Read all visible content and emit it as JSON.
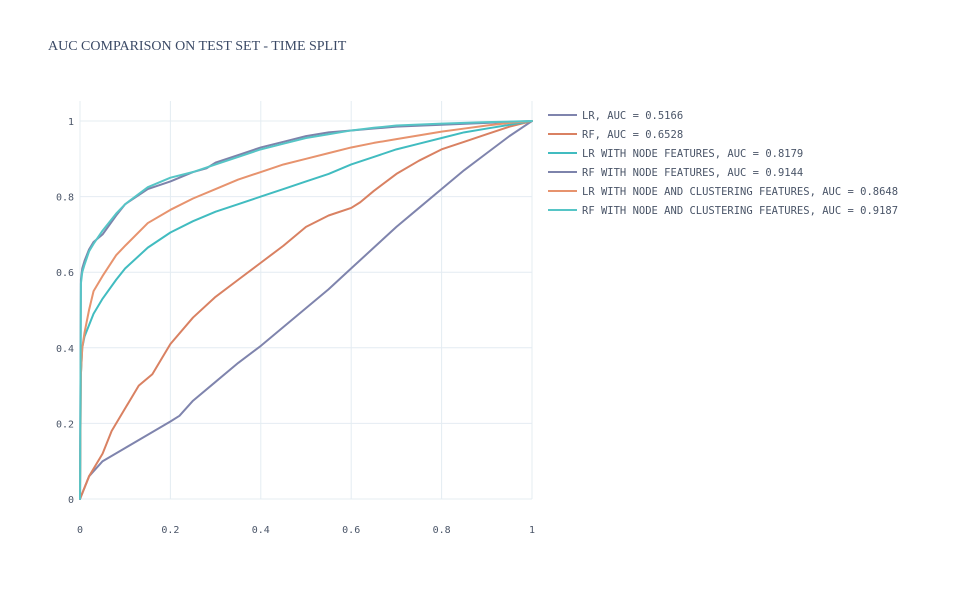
{
  "chart_data": {
    "type": "line",
    "title": "AUC COMPARISON ON TEST SET - TIME SPLIT",
    "xlabel": "",
    "ylabel": "",
    "xlim": [
      0,
      1
    ],
    "ylim": [
      0,
      1
    ],
    "x_ticks": [
      "0",
      "0.2",
      "0.4",
      "0.6",
      "0.8",
      "1"
    ],
    "y_ticks": [
      "0",
      "0.2",
      "0.4",
      "0.6",
      "0.8",
      "1"
    ],
    "grid": true,
    "legend_position": "right",
    "series": [
      {
        "name": "LR, AUC = 0.5166",
        "color": "#7f84ad",
        "x": [
          0,
          0.02,
          0.05,
          0.1,
          0.15,
          0.2,
          0.22,
          0.25,
          0.3,
          0.35,
          0.4,
          0.45,
          0.5,
          0.55,
          0.6,
          0.65,
          0.7,
          0.75,
          0.8,
          0.85,
          0.9,
          0.95,
          1
        ],
        "y": [
          0,
          0.06,
          0.1,
          0.135,
          0.17,
          0.205,
          0.22,
          0.26,
          0.31,
          0.36,
          0.405,
          0.455,
          0.505,
          0.555,
          0.61,
          0.665,
          0.72,
          0.77,
          0.82,
          0.87,
          0.915,
          0.96,
          1
        ]
      },
      {
        "name": "RF, AUC = 0.6528",
        "color": "#d98162",
        "x": [
          0,
          0.02,
          0.05,
          0.07,
          0.1,
          0.13,
          0.16,
          0.18,
          0.2,
          0.25,
          0.3,
          0.35,
          0.4,
          0.45,
          0.5,
          0.55,
          0.6,
          0.62,
          0.65,
          0.7,
          0.75,
          0.8,
          0.85,
          0.9,
          0.95,
          1
        ],
        "y": [
          0,
          0.06,
          0.12,
          0.18,
          0.24,
          0.3,
          0.33,
          0.37,
          0.41,
          0.48,
          0.535,
          0.58,
          0.625,
          0.67,
          0.72,
          0.75,
          0.77,
          0.785,
          0.815,
          0.86,
          0.895,
          0.925,
          0.945,
          0.965,
          0.985,
          1
        ]
      },
      {
        "name": "LR WITH NODE FEATURES, AUC = 0.8179",
        "color": "#41bcc0",
        "x": [
          0,
          0.002,
          0.005,
          0.01,
          0.02,
          0.03,
          0.05,
          0.08,
          0.1,
          0.15,
          0.2,
          0.25,
          0.3,
          0.35,
          0.4,
          0.45,
          0.5,
          0.55,
          0.6,
          0.65,
          0.7,
          0.75,
          0.8,
          0.85,
          0.9,
          0.95,
          1
        ],
        "y": [
          0,
          0.33,
          0.4,
          0.43,
          0.46,
          0.49,
          0.53,
          0.58,
          0.61,
          0.665,
          0.705,
          0.735,
          0.76,
          0.78,
          0.8,
          0.82,
          0.84,
          0.86,
          0.885,
          0.905,
          0.925,
          0.94,
          0.955,
          0.97,
          0.98,
          0.99,
          1
        ]
      },
      {
        "name": "RF WITH NODE FEATURES, AUC = 0.9144",
        "color": "#7d83ab",
        "x": [
          0,
          0.002,
          0.005,
          0.01,
          0.02,
          0.03,
          0.05,
          0.08,
          0.1,
          0.15,
          0.2,
          0.25,
          0.28,
          0.3,
          0.35,
          0.4,
          0.45,
          0.5,
          0.55,
          0.6,
          0.65,
          0.7,
          0.8,
          0.9,
          1
        ],
        "y": [
          0,
          0.58,
          0.61,
          0.63,
          0.66,
          0.68,
          0.7,
          0.75,
          0.78,
          0.82,
          0.84,
          0.865,
          0.875,
          0.89,
          0.91,
          0.93,
          0.945,
          0.96,
          0.97,
          0.975,
          0.98,
          0.985,
          0.99,
          0.995,
          1
        ]
      },
      {
        "name": "LR WITH NODE AND CLUSTERING FEATURES, AUC = 0.8648",
        "color": "#e7936e",
        "x": [
          0,
          0.002,
          0.005,
          0.01,
          0.02,
          0.03,
          0.05,
          0.08,
          0.1,
          0.15,
          0.2,
          0.25,
          0.3,
          0.35,
          0.4,
          0.45,
          0.5,
          0.55,
          0.6,
          0.65,
          0.7,
          0.75,
          0.8,
          0.85,
          0.9,
          0.95,
          1
        ],
        "y": [
          0,
          0.33,
          0.4,
          0.44,
          0.5,
          0.55,
          0.59,
          0.645,
          0.67,
          0.73,
          0.765,
          0.795,
          0.82,
          0.845,
          0.865,
          0.885,
          0.9,
          0.915,
          0.93,
          0.942,
          0.952,
          0.962,
          0.972,
          0.98,
          0.988,
          0.995,
          1
        ]
      },
      {
        "name": "RF WITH NODE AND CLUSTERING FEATURES, AUC = 0.9187",
        "color": "#56c5c6",
        "x": [
          0,
          0.002,
          0.005,
          0.01,
          0.02,
          0.03,
          0.05,
          0.08,
          0.1,
          0.15,
          0.2,
          0.25,
          0.3,
          0.35,
          0.4,
          0.45,
          0.5,
          0.55,
          0.6,
          0.65,
          0.7,
          0.8,
          0.9,
          1
        ],
        "y": [
          0,
          0.57,
          0.6,
          0.62,
          0.655,
          0.675,
          0.71,
          0.755,
          0.78,
          0.825,
          0.85,
          0.865,
          0.885,
          0.905,
          0.925,
          0.94,
          0.955,
          0.965,
          0.975,
          0.982,
          0.988,
          0.993,
          0.997,
          1
        ]
      }
    ]
  }
}
